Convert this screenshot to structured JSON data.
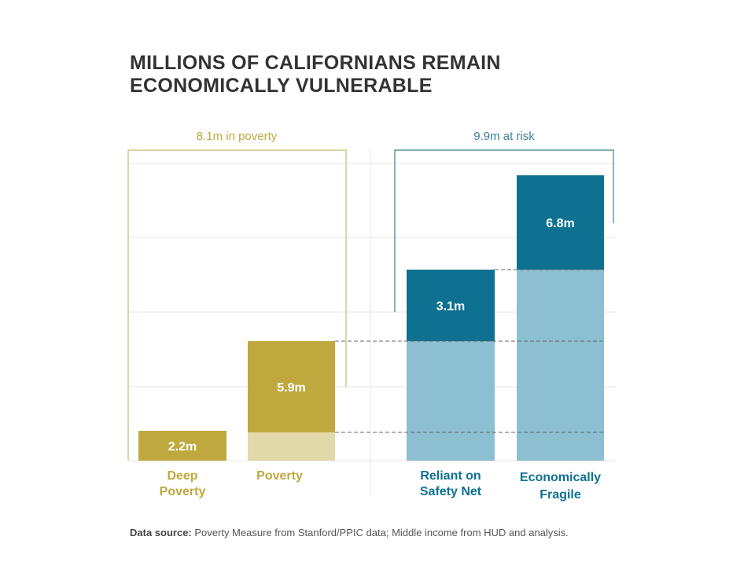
{
  "title_lines": [
    "MILLIONS OF CALIFORNIANS REMAIN",
    "ECONOMICALLY VULNERABLE"
  ],
  "source": {
    "label": "Data source:",
    "text": "Poverty Measure from Stanford/PPIC data; Middle income from HUD and analysis."
  },
  "colors": {
    "gold": "#bfa93e",
    "gold_light": "#e2d9a8",
    "gold_bracket": "#c9bb6e",
    "teal": "#0e7191",
    "teal_light": "#8cbfd2",
    "teal_bracket": "#3f7f95",
    "grid": "#e6e6e6",
    "dash": "#666666"
  },
  "chart_data": {
    "type": "bar",
    "stacked": true,
    "title": "MILLIONS OF CALIFORNIANS REMAIN ECONOMICALLY VULNERABLE",
    "units": "millions of people",
    "categories": [
      "Deep Poverty",
      "Poverty",
      "Reliant on Safety Net",
      "Economically Fragile"
    ],
    "category_label_lines": [
      [
        "Deep",
        "Poverty"
      ],
      [
        "Poverty"
      ],
      [
        "Reliant on",
        "Safety Net"
      ],
      [
        "Economically",
        "Fragile"
      ]
    ],
    "bars": [
      {
        "category": "Deep Poverty",
        "base": 0,
        "value": 2.2,
        "label": "2.2m",
        "group": "poverty"
      },
      {
        "category": "Poverty",
        "base": 2.2,
        "value": 5.9,
        "label": "5.9m",
        "group": "poverty"
      },
      {
        "category": "Reliant on Safety Net",
        "base": 8.1,
        "value": 3.1,
        "label": "3.1m",
        "group": "risk"
      },
      {
        "category": "Economically Fragile",
        "base": 11.2,
        "value": 6.8,
        "label": "6.8m",
        "group": "risk"
      }
    ],
    "groups": [
      {
        "id": "poverty",
        "label": "8.1m in poverty",
        "total": 8.1
      },
      {
        "id": "risk",
        "label": "9.9m at risk",
        "total": 9.9
      }
    ],
    "grid": true,
    "xlabel": "",
    "ylabel": ""
  }
}
